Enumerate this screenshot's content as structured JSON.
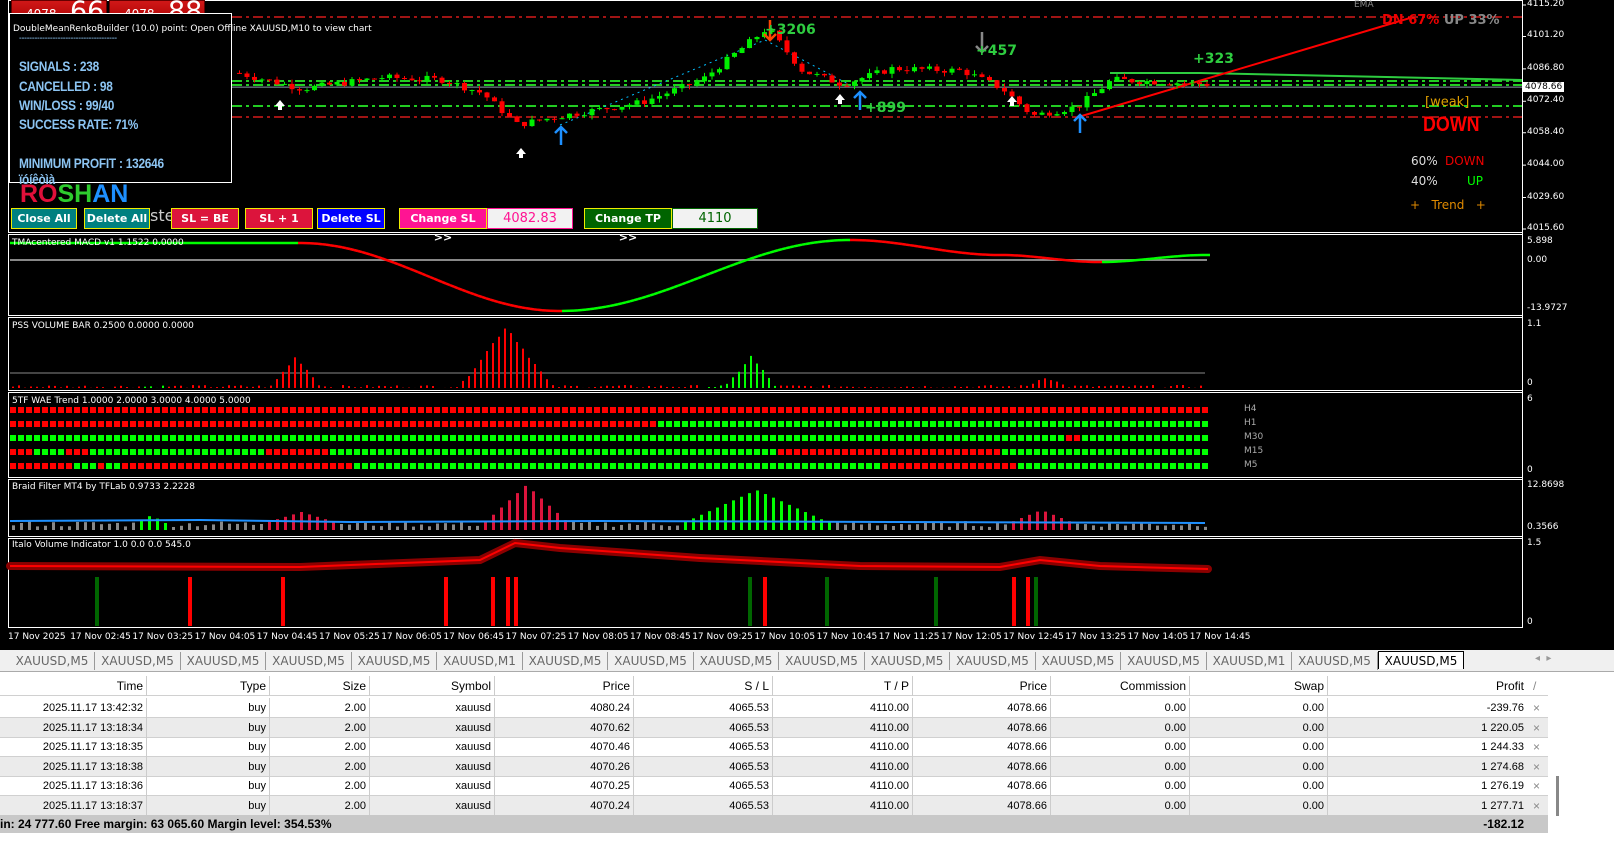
{
  "quotes": {
    "bid_small": "4078",
    "bid_big": "66",
    "ask_small": "4078",
    "ask_big": "88"
  },
  "main_chart": {
    "info_text": "DoubleMeanRenkoBuilder (10.0) point: Open Offline XAUUSD,M10 to view chart",
    "price_axis": [
      "4115.20",
      "4101.20",
      "4086.80",
      "4072.40",
      "4058.40",
      "4044.00",
      "4029.60",
      "4015.60"
    ],
    "current_price": "4078.66",
    "profit_labels": [
      "+3206",
      "+457",
      "+899",
      "+323"
    ],
    "ema_label": "EMA",
    "dn_up": {
      "dn": "DN 67%",
      "up": "UP 33%"
    },
    "trend_panel": {
      "strength": "[weak]",
      "direction": "DOWN",
      "down_pct": "60%",
      "down_label": "DOWN",
      "up_pct": "40%",
      "up_label": "UP",
      "trend": "+   Trend   +"
    },
    "colors": {
      "bull": "#00ee00",
      "bear": "#ff0000",
      "support": "#22cc22",
      "resistance": "#ff2020"
    }
  },
  "stats": {
    "separator": "--------------------------------------",
    "signals": "SIGNALS : 238",
    "cancelled": "CANCELLED : 98",
    "winloss": "WIN/LOSS : 99/40",
    "success": "SUCCESS RATE: 71%",
    "min_profit": "MINIMUM PROFIT : 132646 ïóíêòìà"
  },
  "brand": {
    "r": "RO",
    "s": "SH",
    "a": "AN",
    "hidden_text": "ster"
  },
  "buttons": {
    "close_all": "Close All",
    "delete_all": "Delete All",
    "sl_be": "SL = BE",
    "sl_plus": "SL + 1",
    "delete_sl": "Delete SL",
    "change_sl": "Change SL >>",
    "sl_value": "4082.83",
    "change_tp": "Change TP >>",
    "tp_value": "4110"
  },
  "indicators": {
    "macd": {
      "label": "TMAcentered MACD v1 1.1522 0.0000",
      "axis": [
        "5.898",
        "0.00",
        "-13.9727"
      ]
    },
    "pss": {
      "label": "PSS VOLUME BAR 0.2500 0.0000 0.0000",
      "axis": [
        "1.1",
        "0"
      ]
    },
    "wae": {
      "label": "5TF WAE Trend 1.0000 2.0000 3.0000 4.0000 5.0000",
      "axis": [
        "6",
        "0"
      ],
      "timeframes": [
        "H4",
        "H1",
        "M30",
        "M15",
        "M5"
      ]
    },
    "braid": {
      "label": "Braid Filter MT4 by TFLab 0.9733 2.2228",
      "axis": [
        "12.8698",
        "0.3566"
      ]
    },
    "italo": {
      "label": "Italo Volume Indicator 1.0 0.0 0.0 545.0",
      "axis": [
        "1.5",
        "0"
      ]
    }
  },
  "time_axis": [
    "17 Nov 2025",
    "17 Nov 02:45",
    "17 Nov 03:25",
    "17 Nov 04:05",
    "17 Nov 04:45",
    "17 Nov 05:25",
    "17 Nov 06:05",
    "17 Nov 06:45",
    "17 Nov 07:25",
    "17 Nov 08:05",
    "17 Nov 08:45",
    "17 Nov 09:25",
    "17 Nov 10:05",
    "17 Nov 10:45",
    "17 Nov 11:25",
    "17 Nov 12:05",
    "17 Nov 12:45",
    "17 Nov 13:25",
    "17 Nov 14:05",
    "17 Nov 14:45"
  ],
  "tabs": [
    "XAUUSD,M5",
    "XAUUSD,M5",
    "XAUUSD,M5",
    "XAUUSD,M5",
    "XAUUSD,M5",
    "XAUUSD,M1",
    "XAUUSD,M5",
    "XAUUSD,M5",
    "XAUUSD,M5",
    "XAUUSD,M5",
    "XAUUSD,M5",
    "XAUUSD,M5",
    "XAUUSD,M5",
    "XAUUSD,M5",
    "XAUUSD,M1",
    "XAUUSD,M5",
    "XAUUSD,M5"
  ],
  "active_tab": 16,
  "table": {
    "headers": [
      "Time",
      "Type",
      "Size",
      "Symbol",
      "Price",
      "S / L",
      "T / P",
      "Price",
      "Commission",
      "Swap",
      "Profit"
    ],
    "rows": [
      [
        "2025.11.17 13:42:32",
        "buy",
        "2.00",
        "xauusd",
        "4080.24",
        "4065.53",
        "4110.00",
        "4078.66",
        "0.00",
        "0.00",
        "-239.76"
      ],
      [
        "2025.11.17 13:18:34",
        "buy",
        "2.00",
        "xauusd",
        "4070.62",
        "4065.53",
        "4110.00",
        "4078.66",
        "0.00",
        "0.00",
        "1 220.05"
      ],
      [
        "2025.11.17 13:18:35",
        "buy",
        "2.00",
        "xauusd",
        "4070.46",
        "4065.53",
        "4110.00",
        "4078.66",
        "0.00",
        "0.00",
        "1 244.33"
      ],
      [
        "2025.11.17 13:18:38",
        "buy",
        "2.00",
        "xauusd",
        "4070.26",
        "4065.53",
        "4110.00",
        "4078.66",
        "0.00",
        "0.00",
        "1 274.68"
      ],
      [
        "2025.11.17 13:18:36",
        "buy",
        "2.00",
        "xauusd",
        "4070.25",
        "4065.53",
        "4110.00",
        "4078.66",
        "0.00",
        "0.00",
        "1 276.19"
      ],
      [
        "2025.11.17 13:18:37",
        "buy",
        "2.00",
        "xauusd",
        "4070.24",
        "4065.53",
        "4110.00",
        "4078.66",
        "0.00",
        "0.00",
        "1 277.71"
      ]
    ],
    "summary": "in: 24 777.60  Free margin: 63 065.60  Margin level: 354.53%",
    "total_profit": "-182.12"
  }
}
